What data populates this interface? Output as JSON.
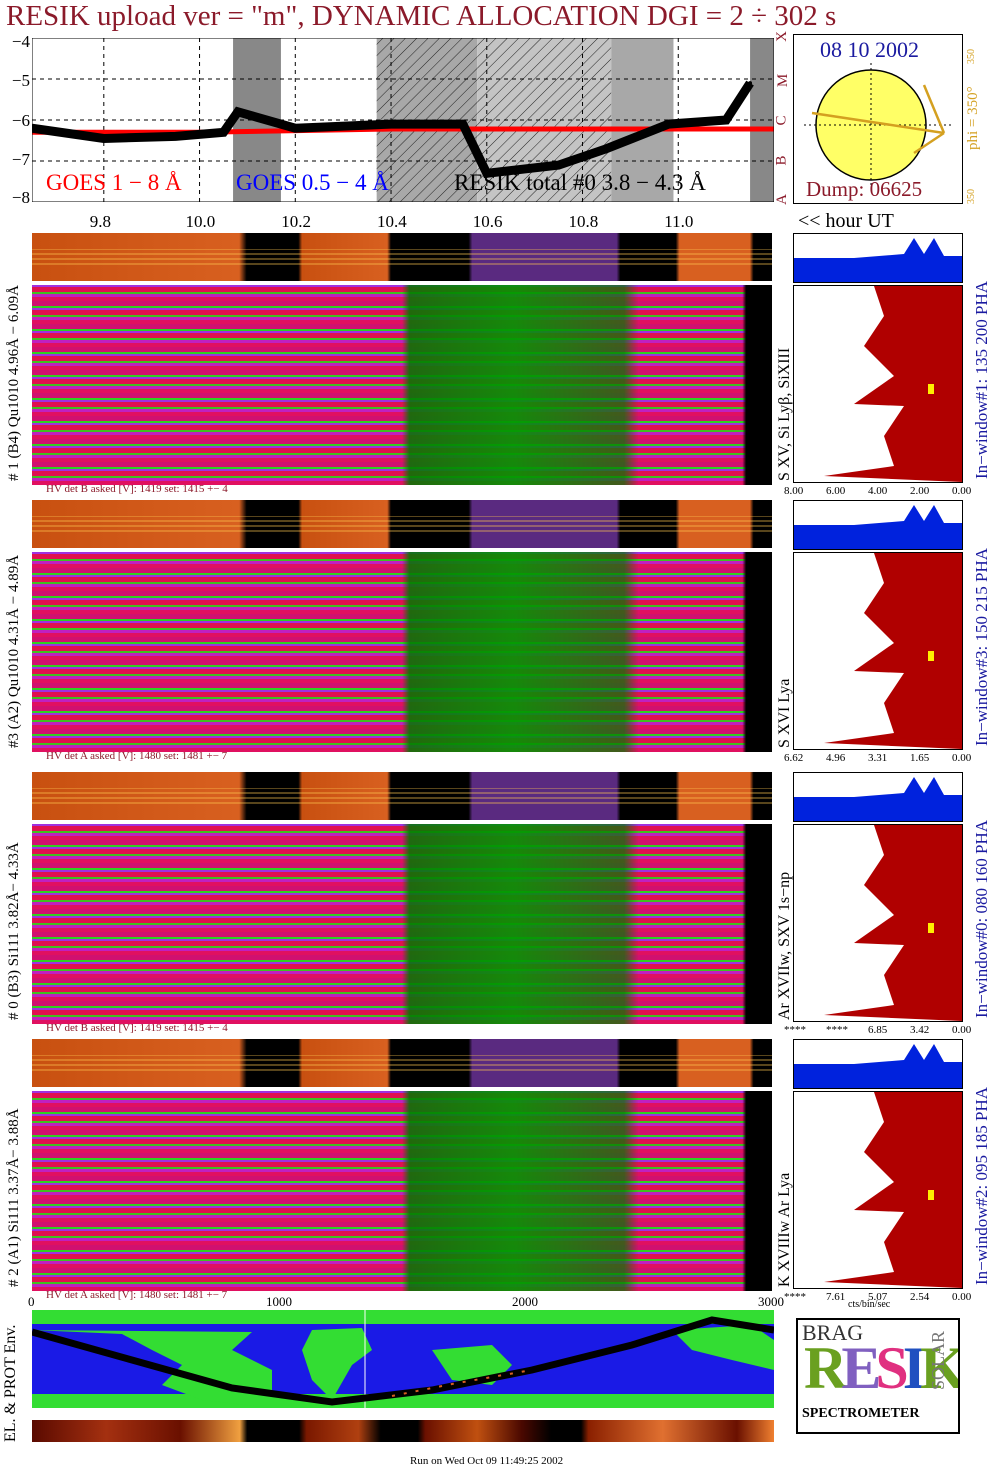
{
  "title": "RESIK upload ver = \"m\", DYNAMIC ALLOCATION  DGI =   2 ÷ 302 s",
  "colors": {
    "title": "#8b1a2a",
    "goes_long": "#ff0000",
    "goes_short": "#0000ff",
    "resik": "#000000",
    "panel_blue": "#1a1aa0",
    "sun_fill": "#ffff66",
    "sun_arrow": "#d4a020",
    "hist_red": "#b00000",
    "hist_blue": "#0022dd"
  },
  "lightcurve": {
    "ylabels": [
      "−4",
      "−5",
      "−6",
      "−7",
      "−8"
    ],
    "legend_goes_long": "GOES 1 − 8 Å",
    "legend_goes_short": "GOES 0.5 − 4 Å",
    "legend_resik": "RESIK total #0  3.8 − 4.3 Å",
    "goes_classes": [
      "X",
      "M",
      "C",
      "B",
      "A"
    ],
    "xticks": [
      "9.8",
      "10.0",
      "10.2",
      "10.4",
      "10.6",
      "10.8",
      "11.0"
    ],
    "xunit": "<< hour UT"
  },
  "chart_data": {
    "type": "line",
    "title": "RESIK upload ver = \"m\", DYNAMIC ALLOCATION  DGI =   2 ÷ 302 s",
    "xlabel": "<< hour UT",
    "ylabel": "",
    "ylim": [
      -8,
      -4
    ],
    "xlim": [
      9.65,
      11.2
    ],
    "series": [
      {
        "name": "GOES 1 − 8 Å",
        "x": [
          9.65,
          10.0,
          10.4,
          10.8,
          11.2
        ],
        "y": [
          -6.3,
          -6.3,
          -6.22,
          -6.22,
          -6.22
        ]
      },
      {
        "name": "RESIK total #0  3.8 − 4.3 Å",
        "x": [
          9.65,
          9.8,
          9.95,
          10.05,
          10.08,
          10.2,
          10.4,
          10.55,
          10.6,
          10.75,
          10.85,
          10.98,
          11.1,
          11.15
        ],
        "y": [
          -6.2,
          -6.45,
          -6.4,
          -6.3,
          -5.8,
          -6.2,
          -6.1,
          -6.1,
          -7.3,
          -7.1,
          -6.7,
          -6.1,
          -6.0,
          -5.1
        ]
      }
    ],
    "shaded_x": [
      [
        10.07,
        10.17
      ],
      [
        10.37,
        10.58
      ],
      [
        10.58,
        10.86
      ],
      [
        10.86,
        10.99
      ],
      [
        11.15,
        11.2
      ]
    ]
  },
  "sun": {
    "date": "08 10 2002",
    "dump": "Dump: 06625",
    "phi": "phi = 350°",
    "ticks": [
      "350",
      "350",
      "350"
    ]
  },
  "panels": [
    {
      "id": "panel-1",
      "left_label": "# 1 (B4) Qu1010 4.96Å − 6.09Å",
      "lines_label": "S XV, Si Lyβ, SiXIII",
      "hv": "HV det B asked [V]:  1419  set:  1415  +−  4",
      "window": "In−window#1:  135 200 PHA",
      "hist_ticks": [
        "8.00",
        "6.00",
        "4.00",
        "2.00",
        "0.00"
      ]
    },
    {
      "id": "panel-3",
      "left_label": "#3 (A2) Qu1010  4.31Å − 4.89Å",
      "lines_label": "S XVI Lya",
      "hv": "HV det A asked [V]:  1480  set:  1481  +−  7",
      "window": "In−window#3:  150 215 PHA",
      "hist_ticks": [
        "6.62",
        "4.96",
        "3.31",
        "1.65",
        "0.00"
      ]
    },
    {
      "id": "panel-0",
      "left_label": "# 0 (B3) Si111  3.82Å− 4.33Å",
      "lines_label": "Ar XVIIw,  SXV 1s−np",
      "hv": "HV det B asked [V]:  1419  set:  1415  +−  4",
      "window": "In−window#0:  080 160 PHA",
      "hist_ticks": [
        "****",
        "****",
        "6.85",
        "3.42",
        "0.00"
      ]
    },
    {
      "id": "panel-2",
      "left_label": "# 2 (A1) Si111  3.37Å− 3.88Å",
      "lines_label": "K XVIIIw  Ar Lya",
      "hv": "HV det A asked [V]:  1480  set:  1481  +−  7",
      "window": "In−window#2:  095 185 PHA",
      "hist_ticks": [
        "****",
        "7.61",
        "5.07",
        "2.54",
        "0.00"
      ]
    }
  ],
  "channel_axis": {
    "ticks": [
      "0",
      "1000",
      "2000",
      "3000"
    ],
    "unit": "cts/bin/sec"
  },
  "map_label": "EL. & PROT Env.",
  "logo": {
    "top": "BRAG",
    "main": "RESIK",
    "side": "SOLAR",
    "bottom": "SPECTROMETER"
  },
  "footer": "Run on Wed Oct 09 11:49:25 2002"
}
